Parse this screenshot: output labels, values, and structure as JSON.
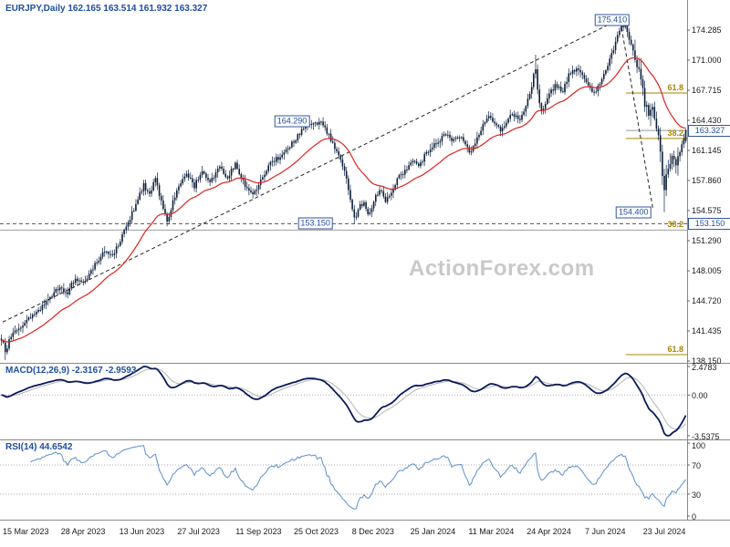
{
  "header": {
    "title": "EURJPY,Daily 162.165 163.514 161.932 163.327"
  },
  "watermark": "ActionForex.com",
  "colors": {
    "candle": "#0d1f3c",
    "ma_line": "#dd2222",
    "macd_line": "#0a1a5a",
    "macd_signal": "#b4b4b4",
    "rsi_line": "#5b8fc9",
    "fib_label": "#a98600",
    "annotation_blue": "#1e4fa0",
    "separator": "#8a8a8a",
    "dotted_level": "#aaaaaa",
    "watermark": "#c9c9c9"
  },
  "chart_data": {
    "type": "candlestick",
    "symbol": "EURJPY",
    "timeframe": "Daily",
    "ohlc_display": {
      "open": "162.165",
      "high": "163.514",
      "low": "161.932",
      "close": "163.327"
    },
    "price_axis": {
      "top_value": 174.285,
      "step": 3.285
    },
    "price_axis_ticks": [
      "174.285",
      "171.000",
      "167.715",
      "164.430",
      "161.145",
      "157.860",
      "154.575",
      "151.290",
      "148.005",
      "144.720",
      "141.435",
      "138.150"
    ],
    "x_axis_dates": [
      "15 Mar 2023",
      "28 Apr 2023",
      "13 Jun 2023",
      "27 Jul 2023",
      "11 Sep 2023",
      "25 Oct 2023",
      "8 Dec 2023",
      "25 Jan 2024",
      "11 Mar 2024",
      "24 Apr 2024",
      "7 Jun 2024",
      "23 Jul 2024"
    ],
    "annotations": [
      {
        "label": "175.410",
        "price": 175.41,
        "xf": 0.891,
        "type": "box"
      },
      {
        "label": "164.290",
        "price": 164.29,
        "xf": 0.425,
        "type": "box"
      },
      {
        "label": "153.150",
        "price": 153.15,
        "xf": 0.459,
        "type": "box"
      },
      {
        "label": "154.400",
        "price": 154.4,
        "xf": 0.922,
        "type": "box"
      },
      {
        "label": "163.327",
        "price": 163.327,
        "type": "axis-box"
      },
      {
        "label": "153.150",
        "price": 153.15,
        "type": "axis-box"
      }
    ],
    "fib_levels": [
      {
        "label": "61.8",
        "price": 167.42,
        "extent": "short"
      },
      {
        "label": "38.2",
        "price": 162.45,
        "extent": "short"
      },
      {
        "label": "38.2",
        "price": 152.45,
        "extent": "full"
      },
      {
        "label": "61.8",
        "price": 138.85,
        "extent": "short"
      }
    ],
    "level_lines": [
      {
        "price": 153.15,
        "style": "dashed",
        "extent": "full"
      },
      {
        "price": 163.327,
        "style": "solid",
        "extent": "short"
      }
    ],
    "trendline": {
      "x1f": 0.004,
      "p1": 142.4,
      "x2f": 0.889,
      "p2": 175.0,
      "style": "dashed"
    },
    "projection": {
      "x1f": 0.903,
      "p1": 175.2,
      "x2f": 0.95,
      "p2": 154.9,
      "style": "dashed"
    },
    "bars": 352,
    "last_bar": {
      "open": 162.165,
      "high": 163.514,
      "low": 161.932,
      "close": 163.327
    },
    "forced_extremes": [
      {
        "xf": 0.006,
        "low": 138.26
      },
      {
        "xf": 0.462,
        "high": 164.29
      },
      {
        "xf": 0.516,
        "low": 153.15
      },
      {
        "xf": 0.78,
        "high": 171.6
      },
      {
        "xf": 0.908,
        "high": 175.41
      },
      {
        "xf": 0.968,
        "low": 154.4
      }
    ],
    "price_path": [
      [
        0.0,
        140.6
      ],
      [
        0.006,
        139.2
      ],
      [
        0.014,
        140.8
      ],
      [
        0.025,
        141.6
      ],
      [
        0.04,
        142.8
      ],
      [
        0.055,
        143.6
      ],
      [
        0.07,
        145.0
      ],
      [
        0.085,
        146.2
      ],
      [
        0.095,
        145.4
      ],
      [
        0.108,
        147.3
      ],
      [
        0.12,
        146.6
      ],
      [
        0.132,
        148.0
      ],
      [
        0.142,
        149.3
      ],
      [
        0.152,
        150.4
      ],
      [
        0.162,
        149.6
      ],
      [
        0.172,
        151.0
      ],
      [
        0.185,
        153.2
      ],
      [
        0.198,
        155.6
      ],
      [
        0.208,
        157.4
      ],
      [
        0.215,
        156.2
      ],
      [
        0.225,
        157.9
      ],
      [
        0.235,
        155.2
      ],
      [
        0.243,
        153.4
      ],
      [
        0.252,
        155.9
      ],
      [
        0.262,
        157.6
      ],
      [
        0.272,
        158.6
      ],
      [
        0.282,
        157.2
      ],
      [
        0.292,
        158.9
      ],
      [
        0.305,
        157.6
      ],
      [
        0.318,
        159.3
      ],
      [
        0.33,
        158.2
      ],
      [
        0.342,
        159.6
      ],
      [
        0.355,
        157.4
      ],
      [
        0.368,
        156.4
      ],
      [
        0.38,
        157.9
      ],
      [
        0.395,
        159.9
      ],
      [
        0.41,
        160.6
      ],
      [
        0.425,
        161.9
      ],
      [
        0.44,
        163.4
      ],
      [
        0.455,
        164.1
      ],
      [
        0.468,
        164.2
      ],
      [
        0.478,
        162.9
      ],
      [
        0.488,
        161.3
      ],
      [
        0.496,
        159.9
      ],
      [
        0.504,
        158.3
      ],
      [
        0.51,
        155.8
      ],
      [
        0.516,
        153.6
      ],
      [
        0.522,
        154.9
      ],
      [
        0.53,
        155.6
      ],
      [
        0.537,
        154.1
      ],
      [
        0.545,
        155.9
      ],
      [
        0.553,
        156.9
      ],
      [
        0.562,
        155.6
      ],
      [
        0.57,
        156.6
      ],
      [
        0.58,
        158.3
      ],
      [
        0.59,
        158.9
      ],
      [
        0.6,
        160.3
      ],
      [
        0.61,
        159.3
      ],
      [
        0.62,
        160.9
      ],
      [
        0.63,
        161.6
      ],
      [
        0.64,
        162.3
      ],
      [
        0.65,
        162.9
      ],
      [
        0.658,
        162.1
      ],
      [
        0.668,
        162.9
      ],
      [
        0.676,
        162.3
      ],
      [
        0.684,
        160.9
      ],
      [
        0.694,
        162.4
      ],
      [
        0.703,
        163.9
      ],
      [
        0.712,
        165.1
      ],
      [
        0.72,
        163.9
      ],
      [
        0.73,
        163.4
      ],
      [
        0.74,
        164.6
      ],
      [
        0.75,
        165.1
      ],
      [
        0.758,
        164.3
      ],
      [
        0.768,
        166.3
      ],
      [
        0.775,
        168.2
      ],
      [
        0.78,
        170.8
      ],
      [
        0.785,
        166.4
      ],
      [
        0.79,
        165.2
      ],
      [
        0.8,
        167.1
      ],
      [
        0.81,
        168.4
      ],
      [
        0.82,
        167.6
      ],
      [
        0.83,
        169.6
      ],
      [
        0.84,
        170.1
      ],
      [
        0.85,
        169.1
      ],
      [
        0.858,
        168.0
      ],
      [
        0.868,
        167.4
      ],
      [
        0.878,
        168.9
      ],
      [
        0.888,
        170.9
      ],
      [
        0.895,
        172.4
      ],
      [
        0.905,
        174.6
      ],
      [
        0.912,
        174.9
      ],
      [
        0.918,
        172.9
      ],
      [
        0.925,
        171.6
      ],
      [
        0.932,
        169.6
      ],
      [
        0.94,
        166.4
      ],
      [
        0.946,
        164.9
      ],
      [
        0.951,
        166.6
      ],
      [
        0.956,
        164.3
      ],
      [
        0.962,
        161.4
      ],
      [
        0.968,
        156.4
      ],
      [
        0.974,
        159.4
      ],
      [
        0.98,
        160.6
      ],
      [
        0.986,
        159.2
      ],
      [
        0.992,
        161.3
      ],
      [
        1.0,
        163.327
      ]
    ],
    "ma": {
      "period": 30
    },
    "macd": {
      "label": "MACD(12,26,9) -2.3167 -2.9593",
      "params": [
        12,
        26,
        9
      ],
      "values_display": [
        "-2.3167",
        "-2.9593"
      ],
      "axis_ticks": [
        "2.4783",
        "0.00",
        "-3.5375"
      ],
      "axis_tick_values": [
        2.4783,
        0,
        -3.5375
      ],
      "range": [
        -3.5375,
        2.4783
      ]
    },
    "rsi": {
      "label": "RSI(14) 44.6542",
      "period": 14,
      "value_display": "44.6542",
      "axis_ticks": [
        "100",
        "70",
        "30",
        "0"
      ],
      "axis_tick_values": [
        100,
        70,
        30,
        0
      ],
      "levels": [
        70,
        30
      ],
      "range": [
        0,
        100
      ]
    }
  }
}
